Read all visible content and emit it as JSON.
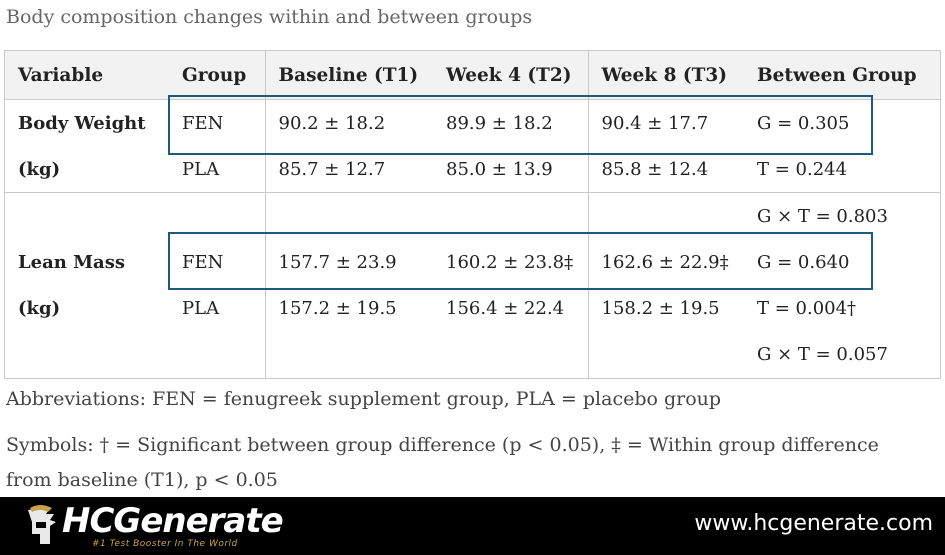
{
  "caption": "Body composition changes within and between groups",
  "table": {
    "headers": [
      "Variable",
      "Group",
      "Baseline (T1)",
      "Week 4 (T2)",
      "Week 8 (T3)",
      "Between Group"
    ],
    "rows": [
      [
        "Body Weight",
        "FEN",
        "90.2 ± 18.2",
        "89.9 ± 18.2",
        "90.4 ± 17.7",
        "G = 0.305"
      ],
      [
        "(kg)",
        "PLA",
        "85.7 ± 12.7",
        "85.0 ± 13.9",
        "85.8 ± 12.4",
        "T = 0.244"
      ],
      [
        "",
        "",
        "",
        "",
        "",
        "G × T = 0.803"
      ],
      [
        "Lean Mass",
        "FEN",
        "157.7 ± 23.9",
        "160.2 ± 23.8‡",
        "162.6 ± 22.9‡",
        "G = 0.640"
      ],
      [
        "(kg)",
        "PLA",
        "157.2 ± 19.5",
        "156.4 ± 22.4",
        "158.2 ± 19.5",
        "T = 0.004†"
      ],
      [
        "",
        "",
        "",
        "",
        "",
        "G × T = 0.057"
      ]
    ]
  },
  "notes": {
    "abbreviations": "Abbreviations: FEN = fenugreek supplement group, PLA = placebo group",
    "symbols_line1": "Symbols: † = Significant between group difference (p < 0.05), ‡ = Within group difference",
    "symbols_line2": "from baseline (T1), p < 0.05"
  },
  "footer": {
    "brand": "HCGenerate",
    "tagline": "#1 Test Booster In The World",
    "url": "www.hcgenerate.com"
  },
  "colors": {
    "highlight_box": "#1e5b7a",
    "header_bg": "#f2f2f2",
    "footer_bg": "#000000",
    "tagline": "#c8a24a"
  },
  "icons": [
    "spartan-helmet-icon"
  ]
}
